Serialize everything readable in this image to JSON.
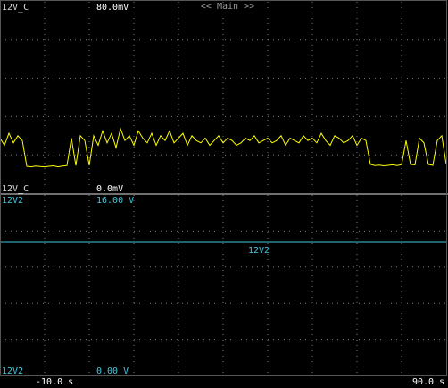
{
  "header": "<< Main >>",
  "chart_data": [
    {
      "type": "line",
      "ylim": [
        0,
        80
      ],
      "yticks": [
        {
          "value": 0,
          "label": "0.0mV"
        },
        {
          "value": 80,
          "label": "80.0mV"
        }
      ],
      "xlim": [
        -10,
        90
      ],
      "series": [
        {
          "name": "12V_C",
          "color": "#ffff00",
          "x": [
            -10,
            -9,
            -8,
            -7,
            -6,
            -5,
            -4,
            -3,
            -2,
            -1,
            0,
            1,
            2,
            3,
            4,
            5,
            6,
            7,
            8,
            9,
            10,
            11,
            12,
            13,
            14,
            15,
            16,
            17,
            18,
            19,
            20,
            21,
            22,
            23,
            24,
            25,
            26,
            27,
            28,
            29,
            30,
            31,
            32,
            33,
            34,
            35,
            36,
            37,
            38,
            39,
            40,
            41,
            42,
            43,
            44,
            45,
            46,
            47,
            48,
            49,
            50,
            51,
            52,
            53,
            54,
            55,
            56,
            57,
            58,
            59,
            60,
            61,
            62,
            63,
            64,
            65,
            66,
            67,
            68,
            69,
            70,
            71,
            72,
            73,
            74,
            75,
            76,
            77,
            78,
            79,
            80,
            81,
            82,
            83,
            84,
            85,
            86,
            87,
            88,
            89,
            90
          ],
          "values": [
            23,
            20,
            25,
            21,
            24,
            22,
            11.2,
            11,
            11.3,
            11.1,
            11,
            11.2,
            11.4,
            11,
            11.3,
            11.5,
            23,
            11.5,
            24,
            22,
            11.6,
            24,
            20,
            26,
            21,
            25,
            19,
            27,
            22,
            24,
            20,
            26,
            23,
            21,
            25,
            20,
            24,
            22,
            26,
            21,
            23,
            25,
            20,
            24,
            22,
            21,
            23,
            20,
            22,
            24,
            21,
            23,
            22,
            20,
            21,
            23,
            22,
            24,
            21,
            22,
            23,
            21,
            22,
            24,
            20,
            23,
            22,
            21,
            24,
            22,
            23,
            21,
            25,
            22,
            20,
            24,
            23,
            21,
            22,
            24,
            20,
            23,
            22,
            12,
            11.5,
            11.7,
            11.4,
            11.6,
            11.8,
            11.5,
            11.9,
            22,
            12,
            11.8,
            23,
            21,
            12,
            11.6,
            22,
            24,
            12
          ]
        }
      ]
    },
    {
      "type": "line",
      "ylim": [
        0,
        16
      ],
      "yticks": [
        {
          "value": 0,
          "label": "0.00 V"
        },
        {
          "value": 16,
          "label": "16.00 V"
        }
      ],
      "xlim": [
        -10,
        90
      ],
      "xticks": [
        {
          "value": -10,
          "label": "-10.0 s"
        },
        {
          "value": 90,
          "label": "90.0 s"
        }
      ],
      "series": [
        {
          "name": "12V2",
          "color": "#40c8e0",
          "x": [
            -10,
            90
          ],
          "values": [
            11.8,
            11.8
          ]
        }
      ]
    }
  ]
}
